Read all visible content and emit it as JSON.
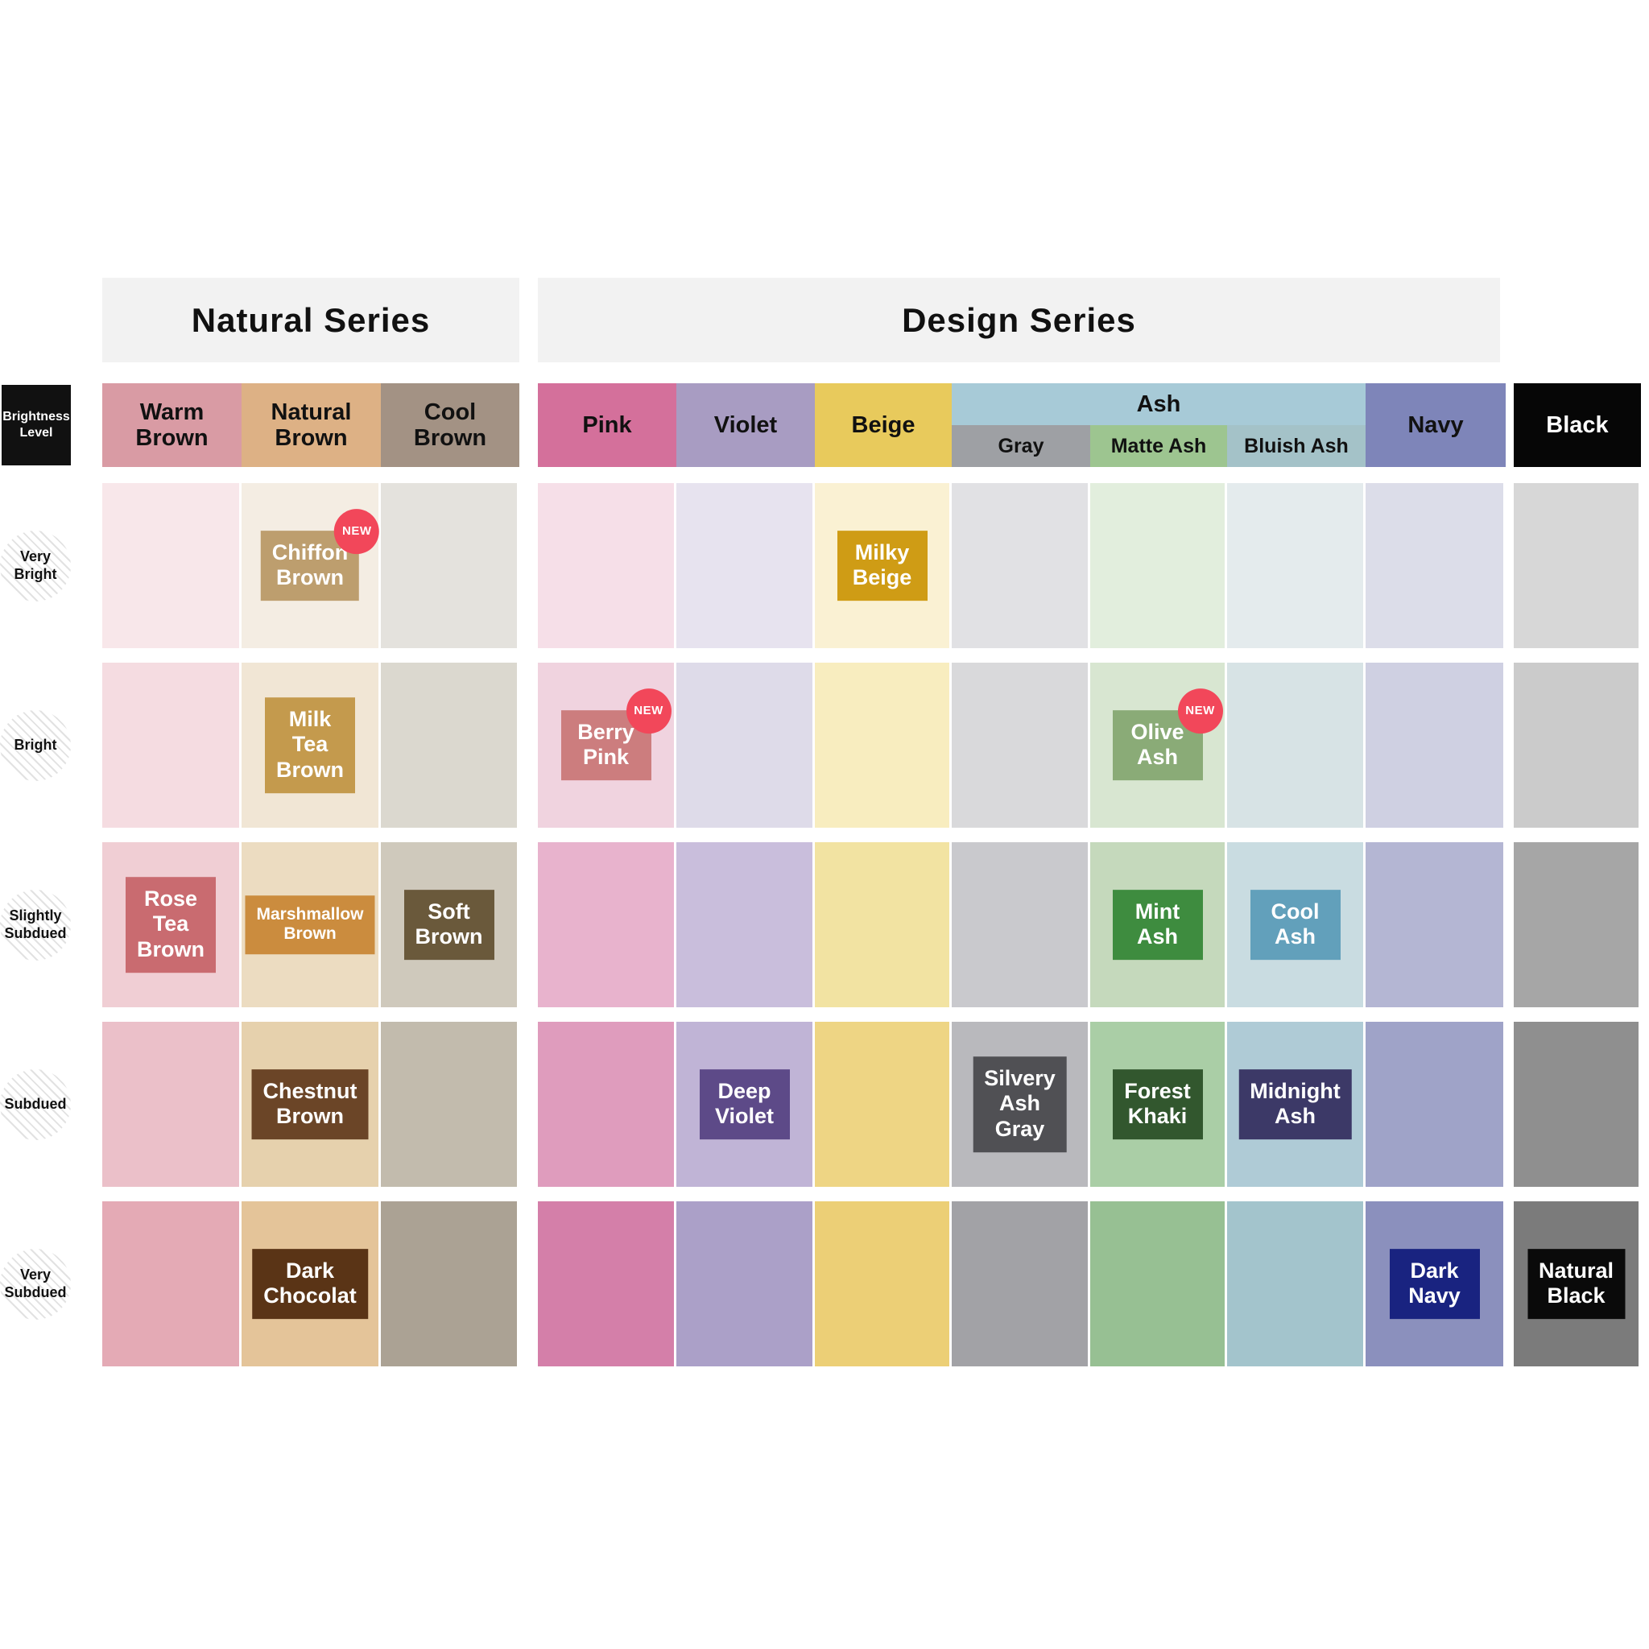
{
  "badge_new": "NEW",
  "series": {
    "natural": "Natural Series",
    "design": "Design Series"
  },
  "brightness_box": "Brightness\nLevel",
  "column_headers": {
    "warm": "Warm\nBrown",
    "natural": "Natural\nBrown",
    "cool": "Cool\nBrown",
    "pink": "Pink",
    "violet": "Violet",
    "beige": "Beige",
    "ash": "Ash",
    "gray": "Gray",
    "matte": "Matte Ash",
    "bluish": "Bluish Ash",
    "navy": "Navy",
    "black": "Black"
  },
  "header_colors": {
    "warm": "#d99ba4",
    "natural": "#ddb185",
    "cool": "#a39284",
    "pink": "#d4709b",
    "violet": "#a89cc2",
    "beige": "#e8ca5c",
    "ash_top": "#a7cad7",
    "gray": "#9ea0a4",
    "matte": "#9dc590",
    "bluish": "#a4c2c8",
    "navy": "#7e85b9",
    "black": "#060606"
  },
  "row_labels": [
    "Very\nBright",
    "Bright",
    "Slightly\nSubdued",
    "Subdued",
    "Very\nSubdued"
  ],
  "grid": {
    "cell_colors": [
      [
        "#f8e7ea",
        "#f4ede3",
        "#e4e2dd",
        "#f6dfe8",
        "#e7e3ef",
        "#faf1d3",
        "#e1e1e4",
        "#e2eedd",
        "#e4ebed",
        "#dcdde9",
        "#d7d7d7"
      ],
      [
        "#f5dce1",
        "#f1e6d5",
        "#dbd8cf",
        "#f0d3df",
        "#dedbe9",
        "#f8edbf",
        "#d9d9db",
        "#d8e6d1",
        "#d7e3e5",
        "#cfd0e2",
        "#cbcbcb"
      ],
      [
        "#f0ced4",
        "#ecdcc1",
        "#cfc9bc",
        "#e8b3cd",
        "#c9bedc",
        "#f2e3a2",
        "#c9c9cd",
        "#c5d9bc",
        "#c9dce1",
        "#b4b6d3",
        "#a6a6a6"
      ],
      [
        "#ebc0c9",
        "#e6d1ad",
        "#c2bbad",
        "#df9cbd",
        "#c0b4d6",
        "#eed584",
        "#b9b9bd",
        "#aacea6",
        "#afcbd6",
        "#9fa3c8",
        "#8f8f8f"
      ],
      [
        "#e4aab5",
        "#e4c499",
        "#aba294",
        "#d47fa9",
        "#aba0c8",
        "#eccf76",
        "#a2a2a6",
        "#97c093",
        "#a3c4cc",
        "#8b90bd",
        "#7b7b7b"
      ]
    ]
  },
  "swatches": [
    {
      "row": 0,
      "col": 1,
      "label": "Chiffon\nBrown",
      "color": "#bd9e6e",
      "new": true
    },
    {
      "row": 0,
      "col": 5,
      "label": "Milky\nBeige",
      "color": "#cf9c15",
      "new": false
    },
    {
      "row": 1,
      "col": 1,
      "label": "Milk Tea\nBrown",
      "color": "#c49a4d",
      "new": false
    },
    {
      "row": 1,
      "col": 3,
      "label": "Berry\nPink",
      "color": "#cc7d7e",
      "new": true
    },
    {
      "row": 1,
      "col": 7,
      "label": "Olive\nAsh",
      "color": "#8aab77",
      "new": true
    },
    {
      "row": 2,
      "col": 0,
      "label": "Rose Tea\nBrown",
      "color": "#c96b70",
      "new": false
    },
    {
      "row": 2,
      "col": 1,
      "label": "Marshmallow\nBrown",
      "color": "#cb8c3e",
      "new": false,
      "fs": 21
    },
    {
      "row": 2,
      "col": 2,
      "label": "Soft\nBrown",
      "color": "#6a593b",
      "new": false
    },
    {
      "row": 2,
      "col": 7,
      "label": "Mint\nAsh",
      "color": "#3e8c3f",
      "new": false
    },
    {
      "row": 2,
      "col": 8,
      "label": "Cool\nAsh",
      "color": "#62a0bb",
      "new": false
    },
    {
      "row": 3,
      "col": 1,
      "label": "Chestnut\nBrown",
      "color": "#6b4527",
      "new": false
    },
    {
      "row": 3,
      "col": 4,
      "label": "Deep\nViolet",
      "color": "#5d4a88",
      "new": false
    },
    {
      "row": 3,
      "col": 6,
      "label": "Silvery\nAsh Gray",
      "color": "#505054",
      "new": false
    },
    {
      "row": 3,
      "col": 7,
      "label": "Forest\nKhaki",
      "color": "#32572e",
      "new": false
    },
    {
      "row": 3,
      "col": 8,
      "label": "Midnight\nAsh",
      "color": "#3c3967",
      "new": false
    },
    {
      "row": 4,
      "col": 1,
      "label": "Dark\nChocolat",
      "color": "#5a3416",
      "new": false
    },
    {
      "row": 4,
      "col": 9,
      "label": "Dark\nNavy",
      "color": "#192380",
      "new": false
    },
    {
      "row": 4,
      "col": 10,
      "label": "Natural\nBlack",
      "color": "#0a0a0a",
      "new": false
    }
  ],
  "chart_data": {
    "type": "table",
    "column_groups": [
      {
        "name": "Natural Series",
        "columns": [
          "Warm Brown",
          "Natural Brown",
          "Cool Brown"
        ]
      },
      {
        "name": "Design Series",
        "columns": [
          "Pink",
          "Violet",
          "Beige",
          "Ash / Gray",
          "Ash / Matte Ash",
          "Ash / Bluish Ash",
          "Navy"
        ]
      },
      {
        "name": "Black",
        "columns": [
          "Black"
        ]
      }
    ],
    "rows": [
      "Very Bright",
      "Bright",
      "Slightly Subdued",
      "Subdued",
      "Very Subdued"
    ],
    "named_swatches": [
      {
        "name": "Chiffon Brown",
        "column": "Natural Brown",
        "row": "Very Bright",
        "color": "#bd9e6e",
        "new": true
      },
      {
        "name": "Milky Beige",
        "column": "Beige",
        "row": "Very Bright",
        "color": "#cf9c15",
        "new": false
      },
      {
        "name": "Milk Tea Brown",
        "column": "Natural Brown",
        "row": "Bright",
        "color": "#c49a4d",
        "new": false
      },
      {
        "name": "Berry Pink",
        "column": "Pink",
        "row": "Bright",
        "color": "#cc7d7e",
        "new": true
      },
      {
        "name": "Olive Ash",
        "column": "Matte Ash",
        "row": "Bright",
        "color": "#8aab77",
        "new": true
      },
      {
        "name": "Rose Tea Brown",
        "column": "Warm Brown",
        "row": "Slightly Subdued",
        "color": "#c96b70",
        "new": false
      },
      {
        "name": "Marshmallow Brown",
        "column": "Natural Brown",
        "row": "Slightly Subdued",
        "color": "#cb8c3e",
        "new": false
      },
      {
        "name": "Soft Brown",
        "column": "Cool Brown",
        "row": "Slightly Subdued",
        "color": "#6a593b",
        "new": false
      },
      {
        "name": "Mint Ash",
        "column": "Matte Ash",
        "row": "Slightly Subdued",
        "color": "#3e8c3f",
        "new": false
      },
      {
        "name": "Cool Ash",
        "column": "Bluish Ash",
        "row": "Slightly Subdued",
        "color": "#62a0bb",
        "new": false
      },
      {
        "name": "Chestnut Brown",
        "column": "Natural Brown",
        "row": "Subdued",
        "color": "#6b4527",
        "new": false
      },
      {
        "name": "Deep Violet",
        "column": "Violet",
        "row": "Subdued",
        "color": "#5d4a88",
        "new": false
      },
      {
        "name": "Silvery Ash Gray",
        "column": "Gray",
        "row": "Subdued",
        "color": "#505054",
        "new": false
      },
      {
        "name": "Forest Khaki",
        "column": "Matte Ash",
        "row": "Subdued",
        "color": "#32572e",
        "new": false
      },
      {
        "name": "Midnight Ash",
        "column": "Bluish Ash",
        "row": "Subdued",
        "color": "#3c3967",
        "new": false
      },
      {
        "name": "Dark Chocolat",
        "column": "Natural Brown",
        "row": "Very Subdued",
        "color": "#5a3416",
        "new": false
      },
      {
        "name": "Dark Navy",
        "column": "Navy",
        "row": "Very Subdued",
        "color": "#192380",
        "new": false
      },
      {
        "name": "Natural Black",
        "column": "Black",
        "row": "Very Subdued",
        "color": "#0a0a0a",
        "new": false
      }
    ]
  }
}
